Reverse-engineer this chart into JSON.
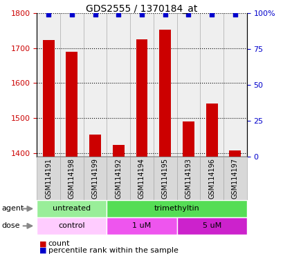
{
  "title": "GDS2555 / 1370184_at",
  "samples": [
    "GSM114191",
    "GSM114198",
    "GSM114199",
    "GSM114192",
    "GSM114194",
    "GSM114195",
    "GSM114193",
    "GSM114196",
    "GSM114197"
  ],
  "counts": [
    1724,
    1690,
    1453,
    1422,
    1726,
    1752,
    1490,
    1542,
    1407
  ],
  "percentile_ranks": [
    99,
    99,
    99,
    99,
    99,
    99,
    99,
    99,
    99
  ],
  "bar_color": "#cc0000",
  "dot_color": "#0000cc",
  "ylim_left": [
    1390,
    1800
  ],
  "yticks_left": [
    1400,
    1500,
    1600,
    1700,
    1800
  ],
  "ylim_right": [
    0,
    100
  ],
  "yticks_right": [
    0,
    25,
    50,
    75,
    100
  ],
  "yticklabels_right": [
    "0",
    "25",
    "50",
    "75",
    "100%"
  ],
  "agent_groups": [
    {
      "label": "untreated",
      "start": 0,
      "end": 3,
      "color": "#99ee99"
    },
    {
      "label": "trimethyltin",
      "start": 3,
      "end": 9,
      "color": "#55dd55"
    }
  ],
  "dose_groups": [
    {
      "label": "control",
      "start": 0,
      "end": 3,
      "color": "#ffccff"
    },
    {
      "label": "1 uM",
      "start": 3,
      "end": 6,
      "color": "#ee55ee"
    },
    {
      "label": "5 uM",
      "start": 6,
      "end": 9,
      "color": "#cc22cc"
    }
  ],
  "bar_width": 0.5,
  "ylabel_left_color": "#cc0000",
  "ylabel_right_color": "#0000cc",
  "title_fontsize": 10,
  "tick_fontsize": 8,
  "sample_fontsize": 7,
  "label_fontsize": 8,
  "background_color": "#ffffff",
  "col_bg_color": "#d8d8d8",
  "col_sep_color": "#aaaaaa",
  "dot_size": 25
}
